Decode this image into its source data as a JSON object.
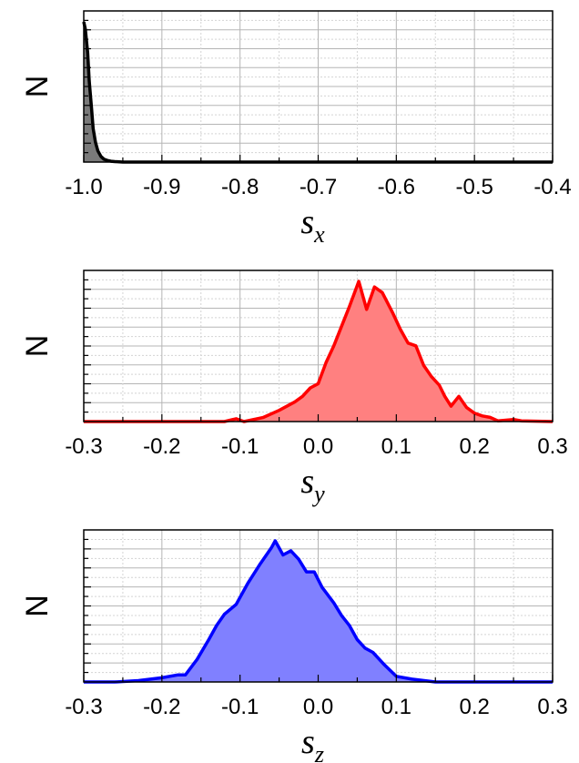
{
  "chart_data": [
    {
      "type": "area",
      "ylabel": "N",
      "xlabel": "s",
      "xlabel_subscript": "x",
      "xlim": [
        -1.0,
        -0.4
      ],
      "x_ticks": [
        "-1.0",
        "-0.9",
        "-0.8",
        "-0.7",
        "-0.6",
        "-0.5",
        "-0.4"
      ],
      "y_tick_labels": false,
      "grid": true,
      "colors": {
        "line": "#000000",
        "fill": "#7a7a7a"
      },
      "series": [
        {
          "x": [
            -1.0,
            -0.998,
            -0.995,
            -0.993,
            -0.99,
            -0.988,
            -0.985,
            -0.982,
            -0.978,
            -0.974,
            -0.97,
            -0.965,
            -0.96,
            -0.95,
            -0.93,
            -0.9,
            -0.8,
            -0.7,
            -0.6,
            -0.5,
            -0.4
          ],
          "y": [
            1.0,
            0.95,
            0.78,
            0.58,
            0.38,
            0.24,
            0.14,
            0.08,
            0.04,
            0.02,
            0.012,
            0.006,
            0.003,
            0.0,
            0.0,
            0.0,
            0.0,
            0.0,
            0.0,
            0.0,
            0.0
          ]
        }
      ]
    },
    {
      "type": "area",
      "ylabel": "N",
      "xlabel": "s",
      "xlabel_subscript": "y",
      "xlim": [
        -0.3,
        0.3
      ],
      "x_ticks": [
        "-0.3",
        "-0.2",
        "-0.1",
        "0.0",
        "0.1",
        "0.2",
        "0.3"
      ],
      "y_tick_labels": false,
      "grid": true,
      "colors": {
        "line": "#ff0000",
        "fill": "#ff8080"
      },
      "series": [
        {
          "x": [
            -0.3,
            -0.2,
            -0.12,
            -0.105,
            -0.095,
            -0.07,
            -0.05,
            -0.03,
            -0.02,
            -0.01,
            0.0,
            0.01,
            0.02,
            0.03,
            0.04,
            0.052,
            0.062,
            0.072,
            0.082,
            0.095,
            0.105,
            0.115,
            0.125,
            0.135,
            0.145,
            0.155,
            0.162,
            0.17,
            0.18,
            0.19,
            0.2,
            0.21,
            0.22,
            0.23,
            0.25,
            0.26,
            0.3
          ],
          "y": [
            0.0,
            0.0,
            0.0,
            0.02,
            0.0,
            0.03,
            0.08,
            0.14,
            0.18,
            0.24,
            0.27,
            0.42,
            0.54,
            0.68,
            0.82,
            1.0,
            0.8,
            0.96,
            0.92,
            0.78,
            0.66,
            0.56,
            0.54,
            0.4,
            0.32,
            0.26,
            0.18,
            0.11,
            0.18,
            0.1,
            0.06,
            0.04,
            0.03,
            0.005,
            0.015,
            0.005,
            0.0
          ]
        }
      ]
    },
    {
      "type": "area",
      "ylabel": "N",
      "xlabel": "s",
      "xlabel_subscript": "z",
      "xlim": [
        -0.3,
        0.3
      ],
      "x_ticks": [
        "-0.3",
        "-0.2",
        "-0.1",
        "0.0",
        "0.1",
        "0.2",
        "0.3"
      ],
      "y_tick_labels": false,
      "grid": true,
      "colors": {
        "line": "#0000ff",
        "fill": "#8080ff"
      },
      "series": [
        {
          "x": [
            -0.3,
            -0.26,
            -0.23,
            -0.2,
            -0.18,
            -0.17,
            -0.155,
            -0.14,
            -0.13,
            -0.12,
            -0.105,
            -0.09,
            -0.075,
            -0.06,
            -0.055,
            -0.045,
            -0.035,
            -0.025,
            -0.015,
            -0.005,
            0.005,
            0.02,
            0.03,
            0.04,
            0.05,
            0.06,
            0.07,
            0.085,
            0.1,
            0.12,
            0.15,
            0.2,
            0.3
          ],
          "y": [
            0.0,
            0.0,
            0.01,
            0.03,
            0.05,
            0.05,
            0.16,
            0.3,
            0.4,
            0.48,
            0.55,
            0.7,
            0.83,
            0.95,
            1.0,
            0.9,
            0.93,
            0.87,
            0.78,
            0.78,
            0.67,
            0.56,
            0.47,
            0.4,
            0.3,
            0.24,
            0.21,
            0.12,
            0.04,
            0.02,
            0.0,
            0.0,
            0.0
          ]
        }
      ]
    }
  ]
}
